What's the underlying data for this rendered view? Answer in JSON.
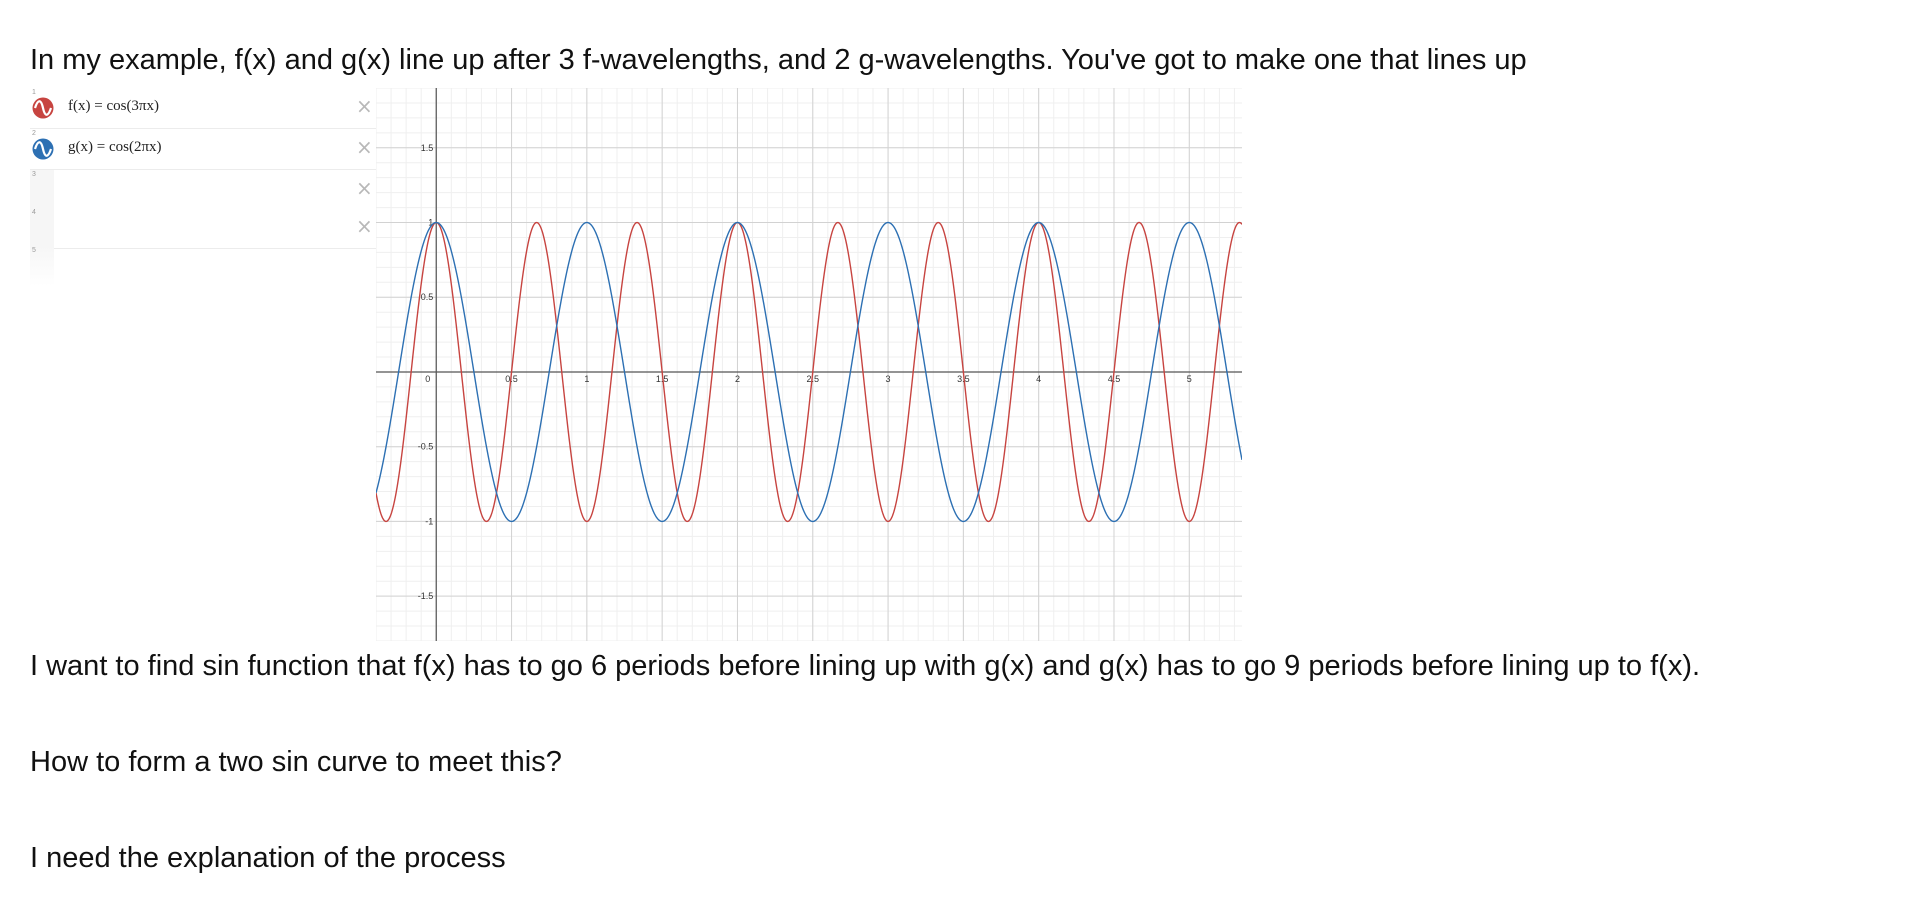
{
  "text": {
    "intro": "In my example, f(x) and g(x) line up after 3 f-wavelengths, and 2 g-wavelengths. You've got to make one that lines up",
    "want": "I want to find sin function that f(x) has to go 6 periods before lining up with g(x) and g(x) has to go 9 periods before lining up to f(x).",
    "how": "How to form a two sin curve to meet this?",
    "need": "I need the explanation of the process"
  },
  "expressions": [
    {
      "index": "1",
      "formula": "f(x) = cos(3πx)",
      "color": "#c74440",
      "icon": "sine-wave-icon"
    },
    {
      "index": "2",
      "formula": "g(x) = cos(2πx)",
      "color": "#2d70b3",
      "icon": "sine-wave-icon"
    },
    {
      "index": "3",
      "formula": ""
    },
    {
      "index": "4",
      "formula": ""
    },
    {
      "index": "5",
      "formula": ""
    }
  ],
  "delete_icon": "×",
  "chart_data": {
    "type": "line",
    "xlim": [
      -0.4,
      5.35
    ],
    "ylim": [
      -1.8,
      1.9
    ],
    "grid": true,
    "minor_grid": true,
    "x_ticks": [
      0,
      0.5,
      1,
      1.5,
      2,
      2.5,
      3,
      3.5,
      4,
      4.5,
      5
    ],
    "x_tick_labels": [
      "0",
      "0.5",
      "1",
      "1.5",
      "2",
      "2.5",
      "3",
      "3.5",
      "4",
      "4.5",
      "5"
    ],
    "y_ticks": [
      -1.5,
      -1,
      -0.5,
      0.5,
      1,
      1.5
    ],
    "y_tick_labels": [
      "-1.5",
      "-1",
      "-0.5",
      "0.5",
      "1",
      "1.5"
    ],
    "series": [
      {
        "name": "f(x) = cos(3πx)",
        "function": "cos(3*pi*x)",
        "angular_frequency_over_pi": 3,
        "color": "#c74440"
      },
      {
        "name": "g(x) = cos(2πx)",
        "function": "cos(2*pi*x)",
        "angular_frequency_over_pi": 2,
        "color": "#2d70b3"
      }
    ]
  }
}
